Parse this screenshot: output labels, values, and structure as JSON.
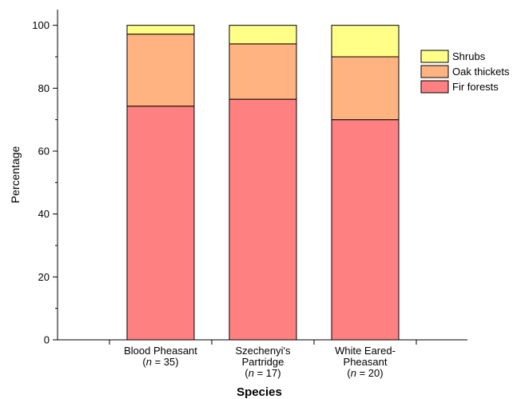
{
  "chart_data": {
    "type": "bar",
    "stacked": true,
    "xlabel": "Species",
    "ylabel": "Percentage",
    "ylim": [
      0,
      105
    ],
    "yticks": [
      0,
      20,
      40,
      60,
      80,
      100
    ],
    "categories": [
      {
        "lines": [
          [
            "Blood Pheasant"
          ],
          [
            "(",
            "n",
            " = 35)"
          ]
        ]
      },
      {
        "lines": [
          [
            "Szechenyi's"
          ],
          [
            "Partridge"
          ],
          [
            "(",
            "n",
            " = 17)"
          ]
        ]
      },
      {
        "lines": [
          [
            "White Eared-"
          ],
          [
            "Pheasant"
          ],
          [
            "(",
            "n",
            " = 20)"
          ]
        ]
      }
    ],
    "series": [
      {
        "name": "Fir forests",
        "color": "#ff8080",
        "values": [
          74.3,
          76.5,
          70.0
        ]
      },
      {
        "name": "Oak thickets",
        "color": "#ffb380",
        "values": [
          22.9,
          17.6,
          20.0
        ]
      },
      {
        "name": "Shrubs",
        "color": "#ffff88",
        "values": [
          2.8,
          5.9,
          10.0
        ]
      }
    ],
    "legend": {
      "position": "top-right",
      "order": [
        "Shrubs",
        "Oak thickets",
        "Fir forests"
      ]
    },
    "grid": false
  }
}
